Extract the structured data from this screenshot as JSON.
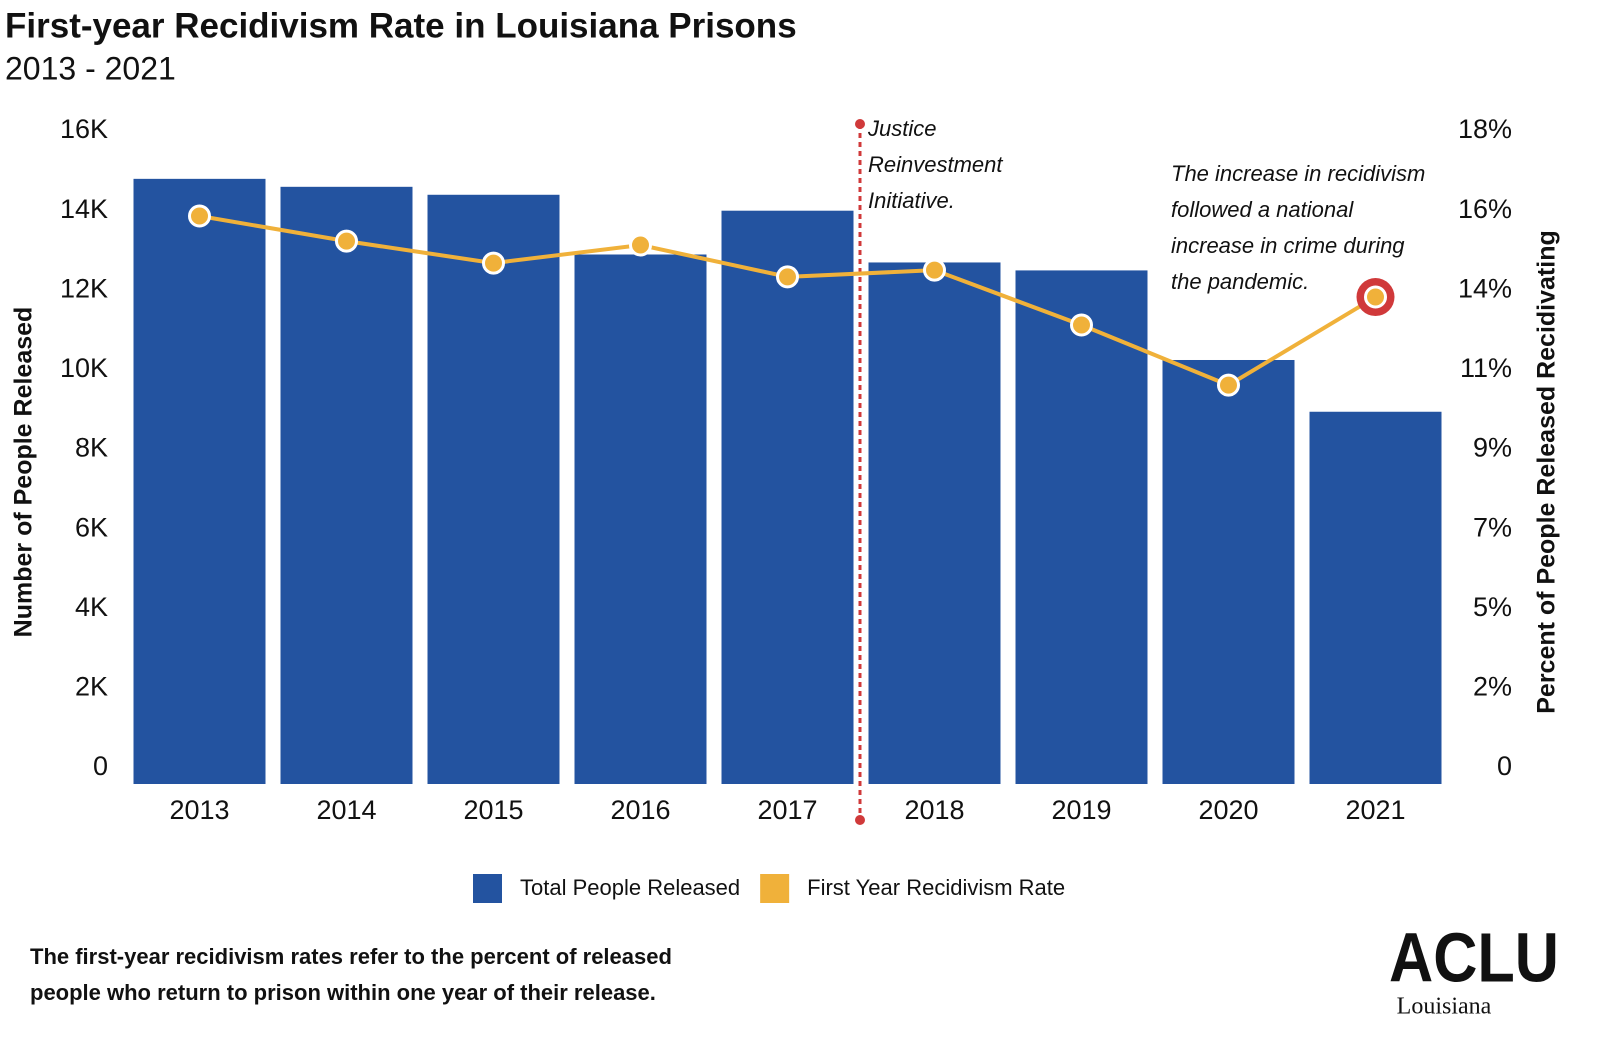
{
  "chart_data": {
    "type": "bar_line",
    "title": "First-year Recidivism Rate in Louisiana Prisons",
    "subtitle": "2013 - 2021",
    "y_label": "Number of People Released",
    "y2_label": "Percent of People Released Recidivating",
    "categories": [
      "2013",
      "2014",
      "2015",
      "2016",
      "2017",
      "2018",
      "2019",
      "2020",
      "2021"
    ],
    "series": [
      {
        "name": "Total People Released",
        "color": "#2353a0",
        "type": "bar",
        "values": [
          15200,
          15000,
          14800,
          13300,
          14400,
          13100,
          12900,
          10650,
          9350
        ]
      },
      {
        "name": "First Year Recidivism Rate",
        "color": "#f0b13a",
        "type": "line",
        "axis": "y2",
        "values": [
          16.05,
          15.34,
          14.72,
          15.23,
          14.33,
          14.52,
          12.97,
          11.27,
          13.76
        ]
      }
    ],
    "ylim": [
      0,
      16000
    ],
    "yticks": [
      {
        "value": 0,
        "label": "0"
      },
      {
        "value": 2000,
        "label": "2K"
      },
      {
        "value": 4000,
        "label": "4K"
      },
      {
        "value": 6000,
        "label": "6K"
      },
      {
        "value": 8000,
        "label": "8K"
      },
      {
        "value": 10000,
        "label": "10K"
      },
      {
        "value": 12000,
        "label": "12K"
      },
      {
        "value": 14000,
        "label": "14K"
      },
      {
        "value": 16000,
        "label": "16K"
      }
    ],
    "y2lim": [
      0,
      18
    ],
    "y2ticks": [
      {
        "value": 0,
        "label": "0"
      },
      {
        "value": 2.25,
        "label": "2%"
      },
      {
        "value": 4.5,
        "label": "5%"
      },
      {
        "value": 6.75,
        "label": "7%"
      },
      {
        "value": 9,
        "label": "9%"
      },
      {
        "value": 11.25,
        "label": "11%"
      },
      {
        "value": 13.5,
        "label": "14%"
      },
      {
        "value": 15.75,
        "label": "16%"
      },
      {
        "value": 18,
        "label": "18%"
      }
    ],
    "annotations": [
      {
        "lines": [
          "Justice",
          "Reinvestment",
          "Initiative."
        ]
      },
      {
        "lines": [
          "The increase in recidivism",
          "followed a national",
          "increase in crime during",
          "the pandemic."
        ]
      }
    ],
    "footnote": [
      "The first-year recidivism rates refer to the percent of released",
      "people who return to prison within one year of their release."
    ],
    "logo": {
      "name": "ACLU",
      "state": "Louisiana"
    }
  }
}
